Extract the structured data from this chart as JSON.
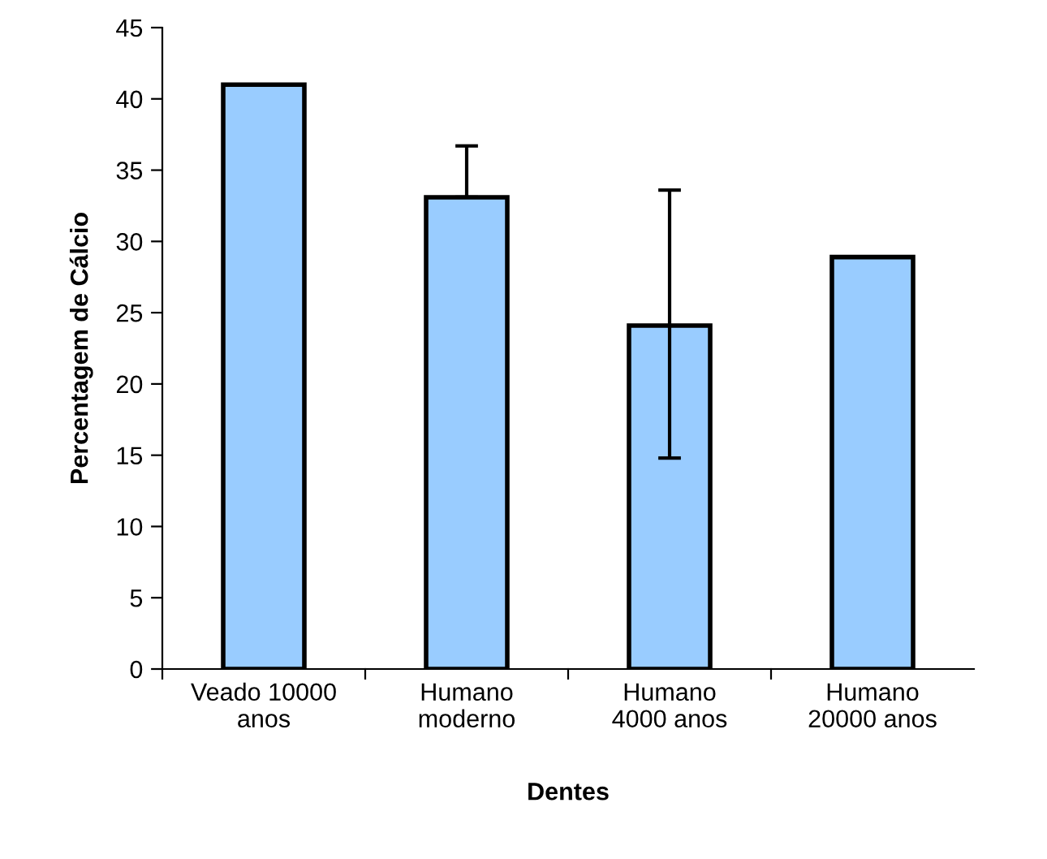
{
  "chart_data": {
    "type": "bar",
    "xlabel": "Dentes",
    "ylabel": "Percentagem de Cálcio",
    "categories": [
      "Veado 10000\nanos",
      "Humano\nmoderno",
      "Humano\n4000 anos",
      "Humano\n20000 anos"
    ],
    "values": [
      41,
      33.1,
      24.1,
      28.9
    ],
    "errors": [
      [
        41,
        41
      ],
      [
        33.1,
        36.7
      ],
      [
        14.8,
        33.6
      ],
      [
        28.9,
        28.9
      ]
    ],
    "color": "#99ccff",
    "ylim": [
      0,
      45
    ],
    "yticks": [
      0,
      5,
      10,
      15,
      20,
      25,
      30,
      35,
      40,
      45
    ],
    "grid": false,
    "legend": false
  }
}
